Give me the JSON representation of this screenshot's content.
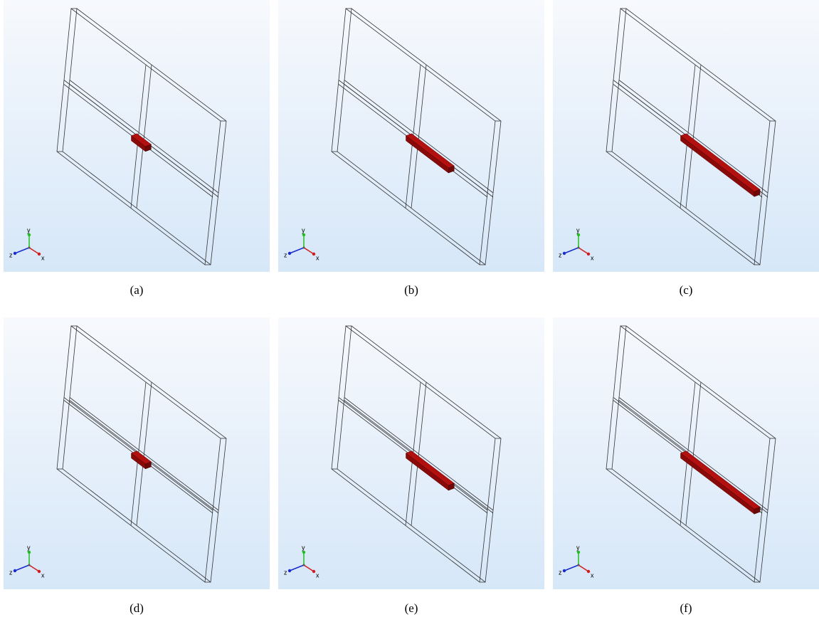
{
  "panels": [
    {
      "caption": "(a)",
      "axis_labels": {
        "x": "x",
        "y": "y",
        "z": "z"
      }
    },
    {
      "caption": "(b)",
      "axis_labels": {
        "x": "x",
        "y": "y",
        "z": "z"
      }
    },
    {
      "caption": "(c)",
      "axis_labels": {
        "x": "x",
        "y": "y",
        "z": "z"
      }
    },
    {
      "caption": "(d)",
      "axis_labels": {
        "x": "x",
        "y": "y",
        "z": "z"
      }
    },
    {
      "caption": "(e)",
      "axis_labels": {
        "x": "x",
        "y": "y",
        "z": "z"
      }
    },
    {
      "caption": "(f)",
      "axis_labels": {
        "x": "x",
        "y": "y",
        "z": "z"
      }
    }
  ]
}
